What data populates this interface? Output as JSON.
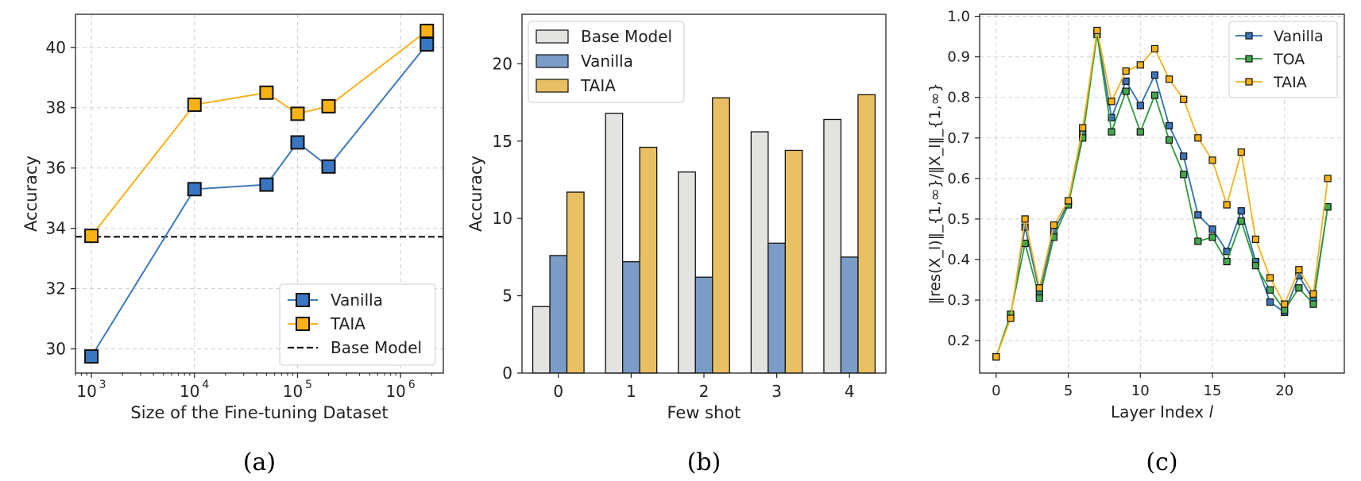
{
  "chart_data": [
    {
      "type": "line",
      "xscale": "log",
      "xlim": [
        700,
        2600000
      ],
      "ylim": [
        29.2,
        41.1
      ],
      "xticks": [
        1000,
        10000,
        100000,
        1000000
      ],
      "xtick_labels": [
        "10",
        "10",
        "10",
        "10"
      ],
      "xtick_exponents": [
        "3",
        "4",
        "5",
        "6"
      ],
      "yticks": [
        30,
        32,
        34,
        36,
        38,
        40
      ],
      "ytick_labels": [
        "30",
        "32",
        "34",
        "36",
        "38",
        "40"
      ],
      "xlabel": "Size of the Fine-tuning Dataset",
      "ylabel": "Accuracy",
      "grid": true,
      "legend_position": "lower-right",
      "series": [
        {
          "name": "Vanilla",
          "color": "#3e7ab8",
          "marker_fill": "#3a77c2",
          "x": [
            1000,
            10000,
            50000,
            100000,
            200000,
            1800000
          ],
          "values": [
            29.75,
            35.3,
            35.45,
            36.85,
            36.05,
            40.1
          ]
        },
        {
          "name": "TAIA",
          "color": "#f6b21a",
          "marker_fill": "#f7b216",
          "x": [
            1000,
            10000,
            50000,
            100000,
            200000,
            1800000
          ],
          "values": [
            33.75,
            38.1,
            38.5,
            37.8,
            38.05,
            40.55
          ]
        }
      ],
      "reference_line": {
        "name": "Base Model",
        "value": 33.72
      },
      "caption": "(a)"
    },
    {
      "type": "bar",
      "categories": [
        "0",
        "1",
        "2",
        "3",
        "4"
      ],
      "ylim": [
        0,
        23.2
      ],
      "yticks": [
        0,
        5,
        10,
        15,
        20
      ],
      "ytick_labels": [
        "0",
        "5",
        "10",
        "15",
        "20"
      ],
      "xlabel": "Few shot",
      "ylabel": "Accuracy",
      "grid": false,
      "legend_position": "top-left",
      "series": [
        {
          "name": "Base Model",
          "color": "#e3e3e1",
          "values": [
            4.3,
            16.8,
            13.0,
            15.6,
            16.4
          ]
        },
        {
          "name": "Vanilla",
          "color": "#7a9cc6",
          "values": [
            7.6,
            7.2,
            6.2,
            8.4,
            7.5
          ]
        },
        {
          "name": "TAIA",
          "color": "#e8bf63",
          "values": [
            11.7,
            14.6,
            17.8,
            14.4,
            18.0
          ]
        }
      ],
      "caption": "(b)"
    },
    {
      "type": "line",
      "x": [
        0,
        1,
        2,
        3,
        4,
        5,
        6,
        7,
        8,
        9,
        10,
        11,
        12,
        13,
        14,
        15,
        16,
        17,
        18,
        19,
        20,
        21,
        22,
        23
      ],
      "xlim": [
        -1.15,
        24.15
      ],
      "ylim": [
        0.12,
        1.005
      ],
      "xticks": [
        0,
        5,
        10,
        15,
        20
      ],
      "xtick_labels": [
        "0",
        "5",
        "10",
        "15",
        "20"
      ],
      "yticks": [
        0.2,
        0.3,
        0.4,
        0.5,
        0.6,
        0.7,
        0.8,
        0.9,
        1.0
      ],
      "ytick_labels": [
        "0.2",
        "0.3",
        "0.4",
        "0.5",
        "0.6",
        "0.7",
        "0.8",
        "0.9",
        "1.0"
      ],
      "xlabel": "Layer Index",
      "xlabel_var": "l",
      "ylabel": "‖res(X_l)‖_{1,∞}/‖X_l‖_{1,∞}",
      "grid": true,
      "legend_position": "top-right",
      "series": [
        {
          "name": "Vanilla",
          "color": "#2e6fb0",
          "marker_fill": "#3d75b9",
          "values": [
            0.16,
            0.26,
            0.48,
            0.32,
            0.47,
            0.54,
            0.71,
            0.96,
            0.75,
            0.84,
            0.78,
            0.855,
            0.73,
            0.655,
            0.51,
            0.475,
            0.42,
            0.52,
            0.395,
            0.295,
            0.27,
            0.36,
            0.3,
            0.53
          ]
        },
        {
          "name": "TOA",
          "color": "#2e9a3c",
          "marker_fill": "#44a84f",
          "values": [
            0.16,
            0.265,
            0.44,
            0.305,
            0.455,
            0.535,
            0.7,
            0.955,
            0.715,
            0.815,
            0.715,
            0.805,
            0.695,
            0.61,
            0.445,
            0.455,
            0.395,
            0.495,
            0.385,
            0.325,
            0.275,
            0.33,
            0.29,
            0.53
          ]
        },
        {
          "name": "TAIA",
          "color": "#f6b21a",
          "marker_fill": "#f7b216",
          "values": [
            0.16,
            0.255,
            0.5,
            0.33,
            0.485,
            0.545,
            0.725,
            0.965,
            0.79,
            0.865,
            0.88,
            0.92,
            0.845,
            0.795,
            0.7,
            0.645,
            0.535,
            0.665,
            0.45,
            0.355,
            0.29,
            0.375,
            0.315,
            0.6
          ]
        }
      ],
      "caption": "(c)"
    }
  ]
}
